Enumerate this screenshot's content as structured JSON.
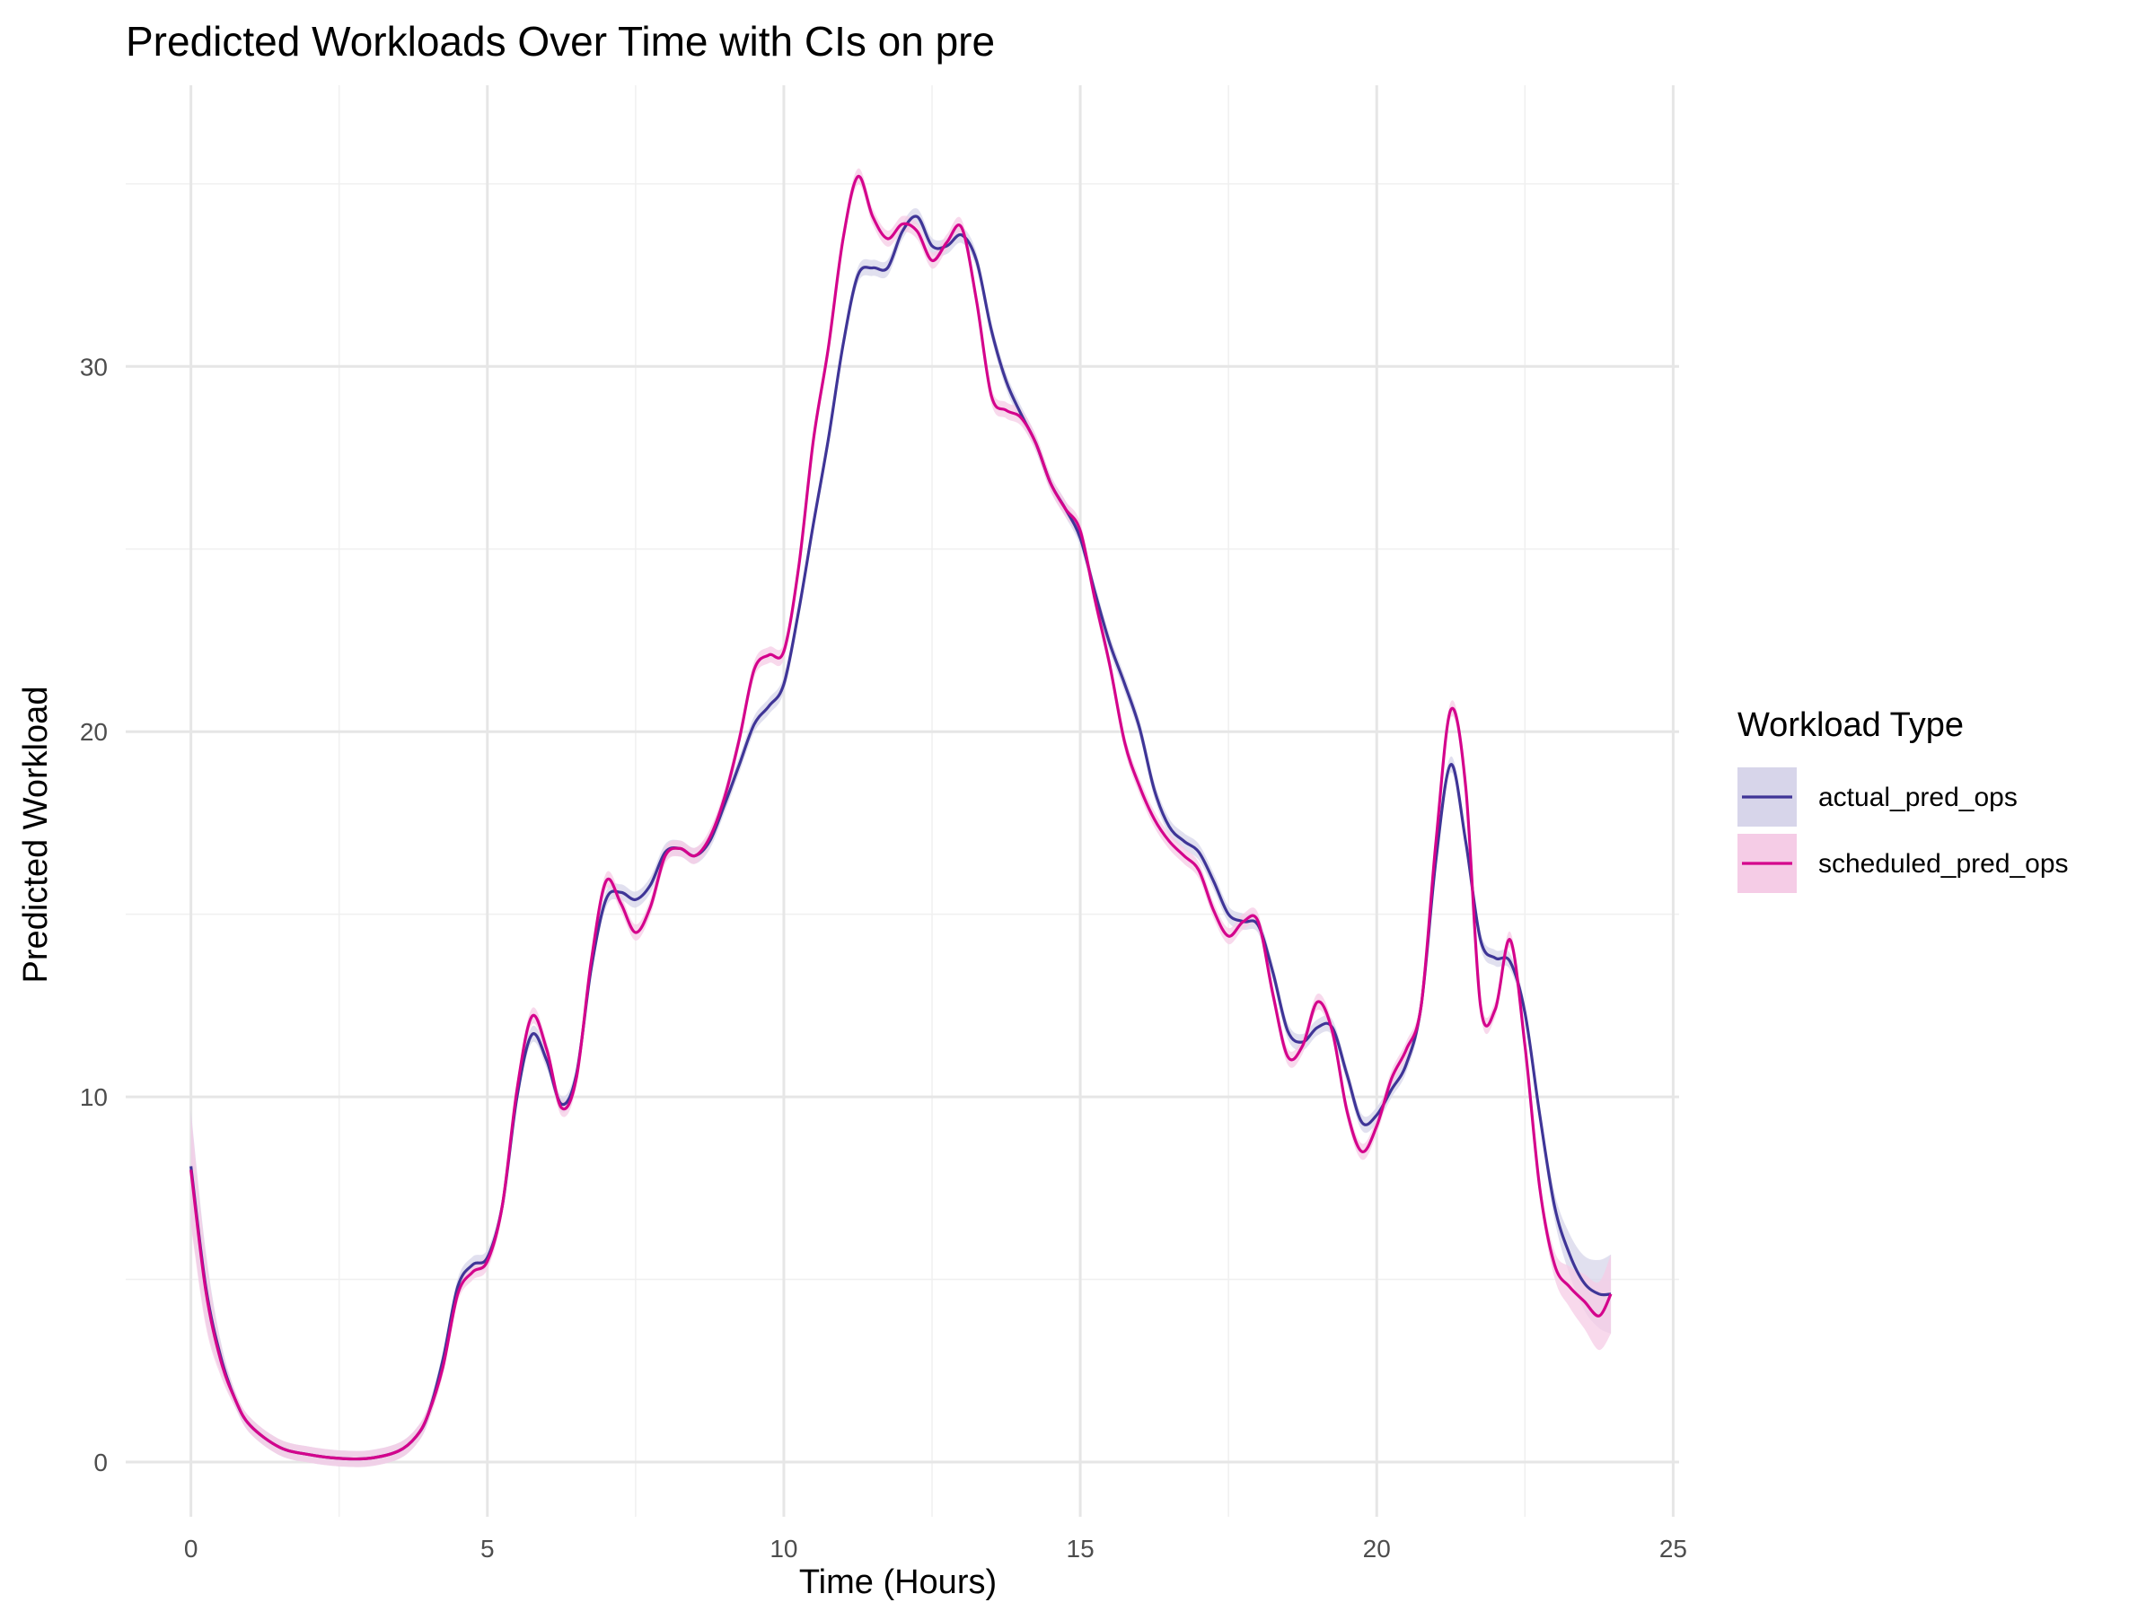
{
  "chart_data": {
    "type": "line",
    "title": "Predicted Workloads Over Time with CIs on pre",
    "xlabel": "Time (Hours)",
    "ylabel": "Predicted Workload",
    "xlim": [
      -1.1,
      25.1
    ],
    "ylim": [
      -1.5,
      37.7
    ],
    "x_ticks": [
      0,
      5,
      10,
      15,
      20,
      25
    ],
    "y_ticks": [
      0,
      10,
      20,
      30
    ],
    "x_tick_labels": [
      "0",
      "5",
      "10",
      "15",
      "20",
      "25"
    ],
    "y_tick_labels": [
      "0",
      "10",
      "20",
      "30"
    ],
    "grid": true,
    "legend": {
      "title": "Workload Type",
      "position": "right"
    },
    "series": [
      {
        "name": "actual_pred_ops",
        "color": "#3f3597",
        "fill": "#d7d5ea",
        "points": [
          [
            0,
            8.1
          ],
          [
            0.25,
            4.8
          ],
          [
            0.5,
            2.9
          ],
          [
            0.75,
            1.7
          ],
          [
            1.0,
            1.0
          ],
          [
            1.5,
            0.4
          ],
          [
            2.0,
            0.2
          ],
          [
            2.5,
            0.1
          ],
          [
            3.0,
            0.1
          ],
          [
            3.5,
            0.3
          ],
          [
            3.8,
            0.7
          ],
          [
            4.0,
            1.3
          ],
          [
            4.25,
            2.8
          ],
          [
            4.5,
            4.8
          ],
          [
            4.75,
            5.4
          ],
          [
            5.0,
            5.6
          ],
          [
            5.25,
            7.0
          ],
          [
            5.5,
            10.0
          ],
          [
            5.75,
            11.7
          ],
          [
            6.0,
            11.0
          ],
          [
            6.25,
            9.8
          ],
          [
            6.5,
            10.6
          ],
          [
            6.75,
            13.5
          ],
          [
            7.0,
            15.4
          ],
          [
            7.25,
            15.6
          ],
          [
            7.5,
            15.4
          ],
          [
            7.75,
            15.8
          ],
          [
            8.0,
            16.7
          ],
          [
            8.25,
            16.8
          ],
          [
            8.5,
            16.6
          ],
          [
            8.75,
            17.0
          ],
          [
            9.0,
            18.0
          ],
          [
            9.25,
            19.1
          ],
          [
            9.5,
            20.2
          ],
          [
            9.75,
            20.7
          ],
          [
            10.0,
            21.3
          ],
          [
            10.25,
            23.3
          ],
          [
            10.5,
            25.7
          ],
          [
            10.75,
            28.0
          ],
          [
            11.0,
            30.6
          ],
          [
            11.25,
            32.5
          ],
          [
            11.5,
            32.7
          ],
          [
            11.75,
            32.7
          ],
          [
            12.0,
            33.7
          ],
          [
            12.25,
            34.1
          ],
          [
            12.5,
            33.3
          ],
          [
            12.75,
            33.3
          ],
          [
            13.0,
            33.6
          ],
          [
            13.25,
            32.9
          ],
          [
            13.5,
            31.0
          ],
          [
            13.75,
            29.6
          ],
          [
            14.0,
            28.7
          ],
          [
            14.25,
            27.9
          ],
          [
            14.5,
            26.8
          ],
          [
            14.75,
            26.1
          ],
          [
            15.0,
            25.3
          ],
          [
            15.25,
            23.8
          ],
          [
            15.5,
            22.4
          ],
          [
            15.75,
            21.3
          ],
          [
            16.0,
            20.1
          ],
          [
            16.25,
            18.4
          ],
          [
            16.5,
            17.4
          ],
          [
            16.75,
            17.0
          ],
          [
            17.0,
            16.7
          ],
          [
            17.25,
            15.9
          ],
          [
            17.5,
            15.0
          ],
          [
            17.75,
            14.8
          ],
          [
            18.0,
            14.7
          ],
          [
            18.25,
            13.4
          ],
          [
            18.5,
            11.8
          ],
          [
            18.75,
            11.5
          ],
          [
            19.0,
            11.9
          ],
          [
            19.25,
            11.9
          ],
          [
            19.5,
            10.6
          ],
          [
            19.75,
            9.3
          ],
          [
            20.0,
            9.5
          ],
          [
            20.25,
            10.2
          ],
          [
            20.5,
            10.9
          ],
          [
            20.75,
            12.5
          ],
          [
            21.0,
            16.5
          ],
          [
            21.25,
            19.1
          ],
          [
            21.5,
            17.0
          ],
          [
            21.75,
            14.3
          ],
          [
            22.0,
            13.8
          ],
          [
            22.25,
            13.7
          ],
          [
            22.5,
            12.3
          ],
          [
            22.75,
            9.5
          ],
          [
            23.0,
            7.0
          ],
          [
            23.25,
            5.7
          ],
          [
            23.5,
            4.9
          ],
          [
            23.75,
            4.6
          ],
          [
            23.95,
            4.6
          ]
        ]
      },
      {
        "name": "scheduled_pred_ops",
        "color": "#d4038c",
        "fill": "#f5cce6",
        "points": [
          [
            0,
            8.0
          ],
          [
            0.25,
            4.7
          ],
          [
            0.5,
            2.8
          ],
          [
            0.75,
            1.7
          ],
          [
            1.0,
            1.0
          ],
          [
            1.5,
            0.4
          ],
          [
            2.0,
            0.2
          ],
          [
            2.5,
            0.1
          ],
          [
            3.0,
            0.1
          ],
          [
            3.5,
            0.3
          ],
          [
            3.8,
            0.7
          ],
          [
            4.0,
            1.3
          ],
          [
            4.25,
            2.6
          ],
          [
            4.5,
            4.6
          ],
          [
            4.75,
            5.2
          ],
          [
            5.0,
            5.5
          ],
          [
            5.25,
            7.0
          ],
          [
            5.5,
            10.2
          ],
          [
            5.75,
            12.2
          ],
          [
            6.0,
            11.3
          ],
          [
            6.25,
            9.7
          ],
          [
            6.5,
            10.5
          ],
          [
            6.75,
            13.7
          ],
          [
            7.0,
            15.9
          ],
          [
            7.25,
            15.3
          ],
          [
            7.5,
            14.5
          ],
          [
            7.75,
            15.2
          ],
          [
            8.0,
            16.6
          ],
          [
            8.25,
            16.8
          ],
          [
            8.5,
            16.6
          ],
          [
            8.75,
            17.1
          ],
          [
            9.0,
            18.2
          ],
          [
            9.25,
            19.8
          ],
          [
            9.5,
            21.7
          ],
          [
            9.75,
            22.1
          ],
          [
            10.0,
            22.2
          ],
          [
            10.25,
            24.5
          ],
          [
            10.5,
            28.0
          ],
          [
            10.75,
            30.5
          ],
          [
            11.0,
            33.5
          ],
          [
            11.25,
            35.2
          ],
          [
            11.5,
            34.1
          ],
          [
            11.75,
            33.5
          ],
          [
            12.0,
            33.9
          ],
          [
            12.25,
            33.7
          ],
          [
            12.5,
            32.9
          ],
          [
            12.75,
            33.4
          ],
          [
            13.0,
            33.8
          ],
          [
            13.25,
            31.8
          ],
          [
            13.5,
            29.2
          ],
          [
            13.75,
            28.8
          ],
          [
            14.0,
            28.6
          ],
          [
            14.25,
            27.9
          ],
          [
            14.5,
            26.8
          ],
          [
            14.75,
            26.1
          ],
          [
            15.0,
            25.5
          ],
          [
            15.25,
            23.6
          ],
          [
            15.5,
            21.8
          ],
          [
            15.75,
            19.7
          ],
          [
            16.0,
            18.5
          ],
          [
            16.25,
            17.6
          ],
          [
            16.5,
            17.0
          ],
          [
            16.75,
            16.6
          ],
          [
            17.0,
            16.2
          ],
          [
            17.25,
            15.1
          ],
          [
            17.5,
            14.4
          ],
          [
            17.75,
            14.8
          ],
          [
            18.0,
            14.8
          ],
          [
            18.25,
            12.8
          ],
          [
            18.5,
            11.1
          ],
          [
            18.75,
            11.4
          ],
          [
            19.0,
            12.6
          ],
          [
            19.25,
            11.8
          ],
          [
            19.5,
            9.6
          ],
          [
            19.75,
            8.5
          ],
          [
            20.0,
            9.2
          ],
          [
            20.25,
            10.5
          ],
          [
            20.5,
            11.3
          ],
          [
            20.75,
            12.5
          ],
          [
            21.0,
            17.0
          ],
          [
            21.25,
            20.6
          ],
          [
            21.5,
            18.5
          ],
          [
            21.75,
            12.5
          ],
          [
            22.0,
            12.4
          ],
          [
            22.25,
            14.3
          ],
          [
            22.5,
            11.4
          ],
          [
            22.75,
            7.5
          ],
          [
            23.0,
            5.4
          ],
          [
            23.25,
            4.8
          ],
          [
            23.5,
            4.4
          ],
          [
            23.75,
            4.0
          ],
          [
            23.95,
            4.6
          ]
        ]
      }
    ]
  }
}
